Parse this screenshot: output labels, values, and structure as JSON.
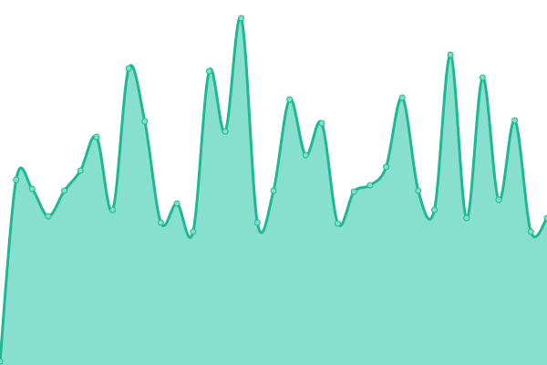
{
  "chart_data": {
    "type": "area",
    "categories": [
      null,
      null,
      null,
      null,
      null,
      null,
      null,
      null,
      null,
      null,
      null,
      null,
      null,
      null,
      null,
      null,
      null,
      null,
      null,
      null,
      null,
      null,
      null,
      null,
      null,
      null,
      null,
      null,
      null,
      null,
      null,
      null,
      null,
      null,
      null
    ],
    "values": [
      4,
      203,
      193,
      163,
      191,
      213,
      250,
      170,
      325,
      267,
      156,
      177,
      146,
      322,
      256,
      380,
      156,
      191,
      291,
      230,
      265,
      155,
      190,
      197,
      217,
      293,
      191,
      170,
      340,
      161,
      315,
      181,
      268,
      146,
      161
    ],
    "ylim": [
      0,
      400
    ],
    "color": "#1fb893",
    "fill_color": "#87dfce",
    "marker_color": "#7ee0c8"
  }
}
